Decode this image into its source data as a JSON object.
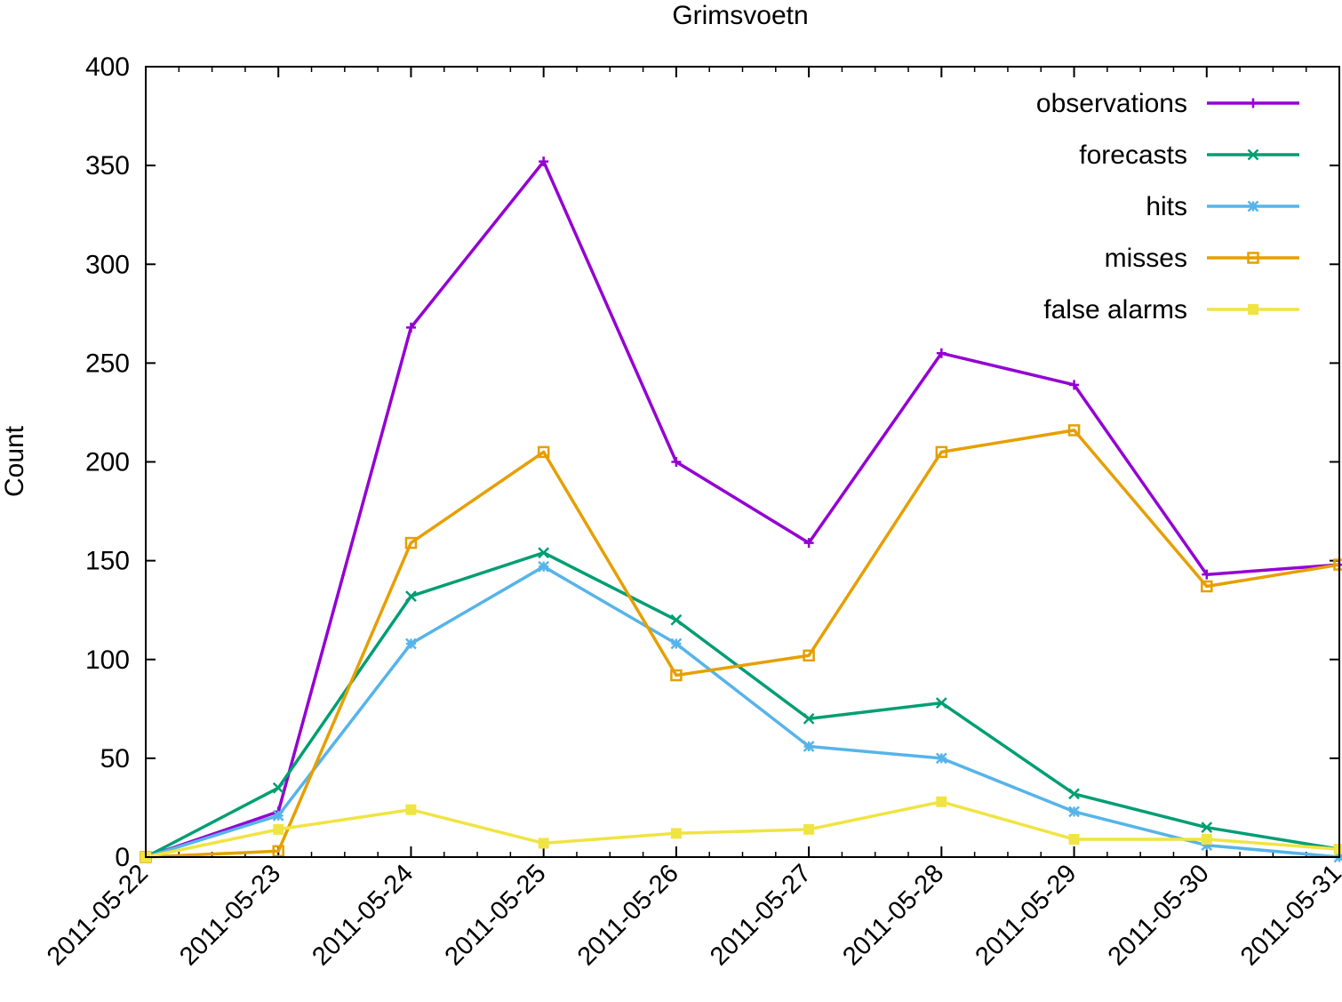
{
  "chart_data": {
    "type": "line",
    "title": "Grimsvoetn",
    "ylabel": "Count",
    "xlabel": "",
    "ylim": [
      0,
      400
    ],
    "yticks": [
      0,
      50,
      100,
      150,
      200,
      250,
      300,
      350,
      400
    ],
    "x": [
      "2011-05-22",
      "2011-05-23",
      "2011-05-24",
      "2011-05-25",
      "2011-05-26",
      "2011-05-27",
      "2011-05-28",
      "2011-05-29",
      "2011-05-30",
      "2011-05-31"
    ],
    "grid": false,
    "legend_position": "top-right",
    "series": [
      {
        "name": "observations",
        "color": "#9400d3",
        "marker": "plus",
        "values": [
          0,
          23,
          268,
          352,
          200,
          159,
          255,
          239,
          143,
          148
        ]
      },
      {
        "name": "forecasts",
        "color": "#009e73",
        "marker": "cross",
        "values": [
          0,
          35,
          132,
          154,
          120,
          70,
          78,
          32,
          15,
          4
        ]
      },
      {
        "name": "hits",
        "color": "#56b4e9",
        "marker": "star",
        "values": [
          0,
          21,
          108,
          147,
          108,
          56,
          50,
          23,
          6,
          0
        ]
      },
      {
        "name": "misses",
        "color": "#e69f00",
        "marker": "open-square",
        "values": [
          0,
          3,
          159,
          205,
          92,
          102,
          205,
          216,
          137,
          148
        ]
      },
      {
        "name": "false alarms",
        "color": "#f0e442",
        "marker": "filled-square",
        "values": [
          0,
          14,
          24,
          7,
          12,
          14,
          28,
          9,
          9,
          4
        ]
      }
    ]
  }
}
